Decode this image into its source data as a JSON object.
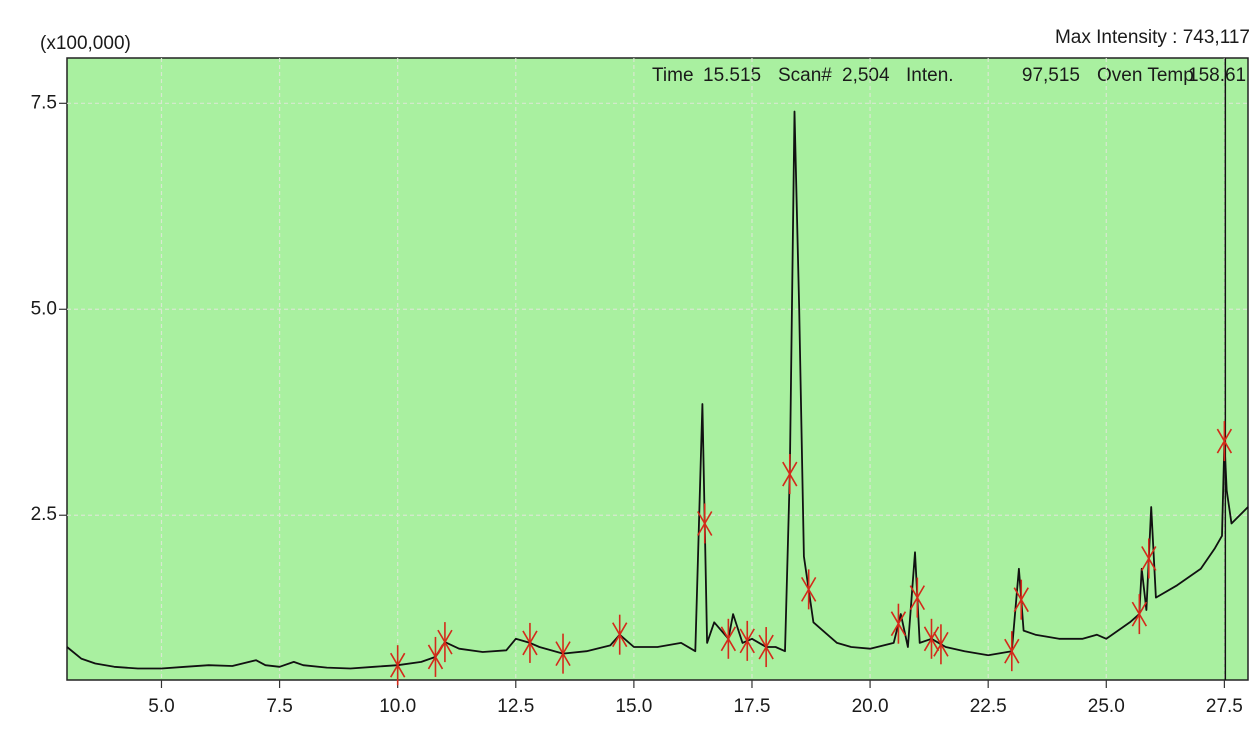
{
  "chart_data": {
    "type": "line",
    "y_unit_label": "(x100,000)",
    "max_intensity_label": "Max Intensity : 743,117",
    "readout": {
      "time_label": "Time",
      "time": "15.515",
      "scan_label": "Scan#",
      "scan": "2,504",
      "inten_label": "Inten.",
      "inten": "97,515",
      "oven_label": "Oven Temp",
      "oven": "158.61"
    },
    "x": [
      3.0,
      3.3,
      3.6,
      4.0,
      4.5,
      5.0,
      5.5,
      6.0,
      6.5,
      7.0,
      7.2,
      7.5,
      7.8,
      8.0,
      8.5,
      9.0,
      9.5,
      10.0,
      10.5,
      10.8,
      11.0,
      11.3,
      11.8,
      12.3,
      12.5,
      12.8,
      13.0,
      13.5,
      14.0,
      14.5,
      14.7,
      15.0,
      15.5,
      16.0,
      16.3,
      16.45,
      16.55,
      16.7,
      17.0,
      17.1,
      17.3,
      17.5,
      17.8,
      18.0,
      18.2,
      18.3,
      18.4,
      18.5,
      18.6,
      18.8,
      19.0,
      19.3,
      19.6,
      20.0,
      20.5,
      20.65,
      20.8,
      20.95,
      21.05,
      21.3,
      21.6,
      22.0,
      22.5,
      23.0,
      23.15,
      23.25,
      23.5,
      24.0,
      24.5,
      24.8,
      25.0,
      25.5,
      25.7,
      25.75,
      25.85,
      25.95,
      26.05,
      26.5,
      27.0,
      27.3,
      27.45,
      27.5,
      27.55,
      27.65,
      28.0
    ],
    "values": [
      0.9,
      0.76,
      0.7,
      0.66,
      0.64,
      0.64,
      0.66,
      0.68,
      0.67,
      0.74,
      0.68,
      0.66,
      0.72,
      0.68,
      0.65,
      0.64,
      0.66,
      0.68,
      0.72,
      0.78,
      0.96,
      0.88,
      0.84,
      0.86,
      1.0,
      0.95,
      0.9,
      0.82,
      0.85,
      0.92,
      1.05,
      0.9,
      0.9,
      0.95,
      0.85,
      3.85,
      0.95,
      1.2,
      1.0,
      1.3,
      0.95,
      1.0,
      0.9,
      0.9,
      0.85,
      3.0,
      7.4,
      5.0,
      2.0,
      1.2,
      1.1,
      0.95,
      0.9,
      0.88,
      0.95,
      1.3,
      0.9,
      2.05,
      0.95,
      1.0,
      0.9,
      0.85,
      0.8,
      0.85,
      1.85,
      1.1,
      1.05,
      1.0,
      1.0,
      1.05,
      1.0,
      1.2,
      1.3,
      1.85,
      1.35,
      2.6,
      1.5,
      1.65,
      1.85,
      2.1,
      2.25,
      3.4,
      2.8,
      2.4,
      2.6
    ],
    "color": "#111111",
    "peaks": [
      10.0,
      10.8,
      11.0,
      12.8,
      13.5,
      14.7,
      16.5,
      17.0,
      17.4,
      17.8,
      18.3,
      18.7,
      20.6,
      21.0,
      21.3,
      21.5,
      23.0,
      23.2,
      25.7,
      25.9,
      27.5
    ],
    "peak_color": "#d42a1a",
    "cursor_x": 27.52,
    "xlim": [
      3.0,
      28.0
    ],
    "ylim": [
      0.5,
      8.05
    ],
    "xticks": [
      {
        "value": 5,
        "label": "5.0"
      },
      7.5,
      {
        "value": 10,
        "label": "10.0"
      },
      12.5,
      {
        "value": 15,
        "label": "15.0"
      },
      17.5,
      {
        "value": 20,
        "label": "20.0"
      },
      22.5,
      {
        "value": 25,
        "label": "25.0"
      },
      27.5
    ],
    "yticks": [
      2.5,
      {
        "value": 5,
        "label": "5.0"
      },
      7.5
    ],
    "grid": true,
    "background": "#a9f0a0"
  }
}
